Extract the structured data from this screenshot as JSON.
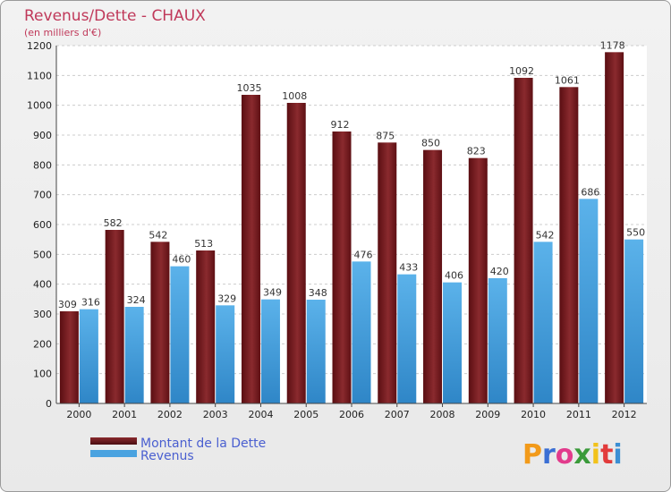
{
  "chart_data": {
    "type": "bar",
    "title": "Revenus/Dette - CHAUX",
    "subtitle": "(en milliers d'€)",
    "categories": [
      "2000",
      "2001",
      "2002",
      "2003",
      "2004",
      "2005",
      "2006",
      "2007",
      "2008",
      "2009",
      "2010",
      "2011",
      "2012"
    ],
    "series": [
      {
        "name": "Montant de la Dette",
        "color": "#7a1a1e",
        "values": [
          309,
          582,
          542,
          513,
          1035,
          1008,
          912,
          875,
          850,
          823,
          1092,
          1061,
          1178
        ]
      },
      {
        "name": "Revenus",
        "color": "#4aa3e0",
        "values": [
          316,
          324,
          460,
          329,
          349,
          348,
          476,
          433,
          406,
          420,
          542,
          686,
          550
        ]
      }
    ],
    "ylim": [
      0,
      1200
    ],
    "yticks": [
      0,
      100,
      200,
      300,
      400,
      500,
      600,
      700,
      800,
      900,
      1000,
      1100,
      1200
    ],
    "grid": true,
    "legend": "bottom-left"
  },
  "logo": {
    "letters": [
      "P",
      "r",
      "o",
      "x",
      "i",
      "t",
      "i"
    ],
    "colors": [
      "#f29a1a",
      "#3b6fd4",
      "#e23b8c",
      "#3a9a3a",
      "#f2c21a",
      "#e23b3b",
      "#3b8fd4"
    ]
  }
}
